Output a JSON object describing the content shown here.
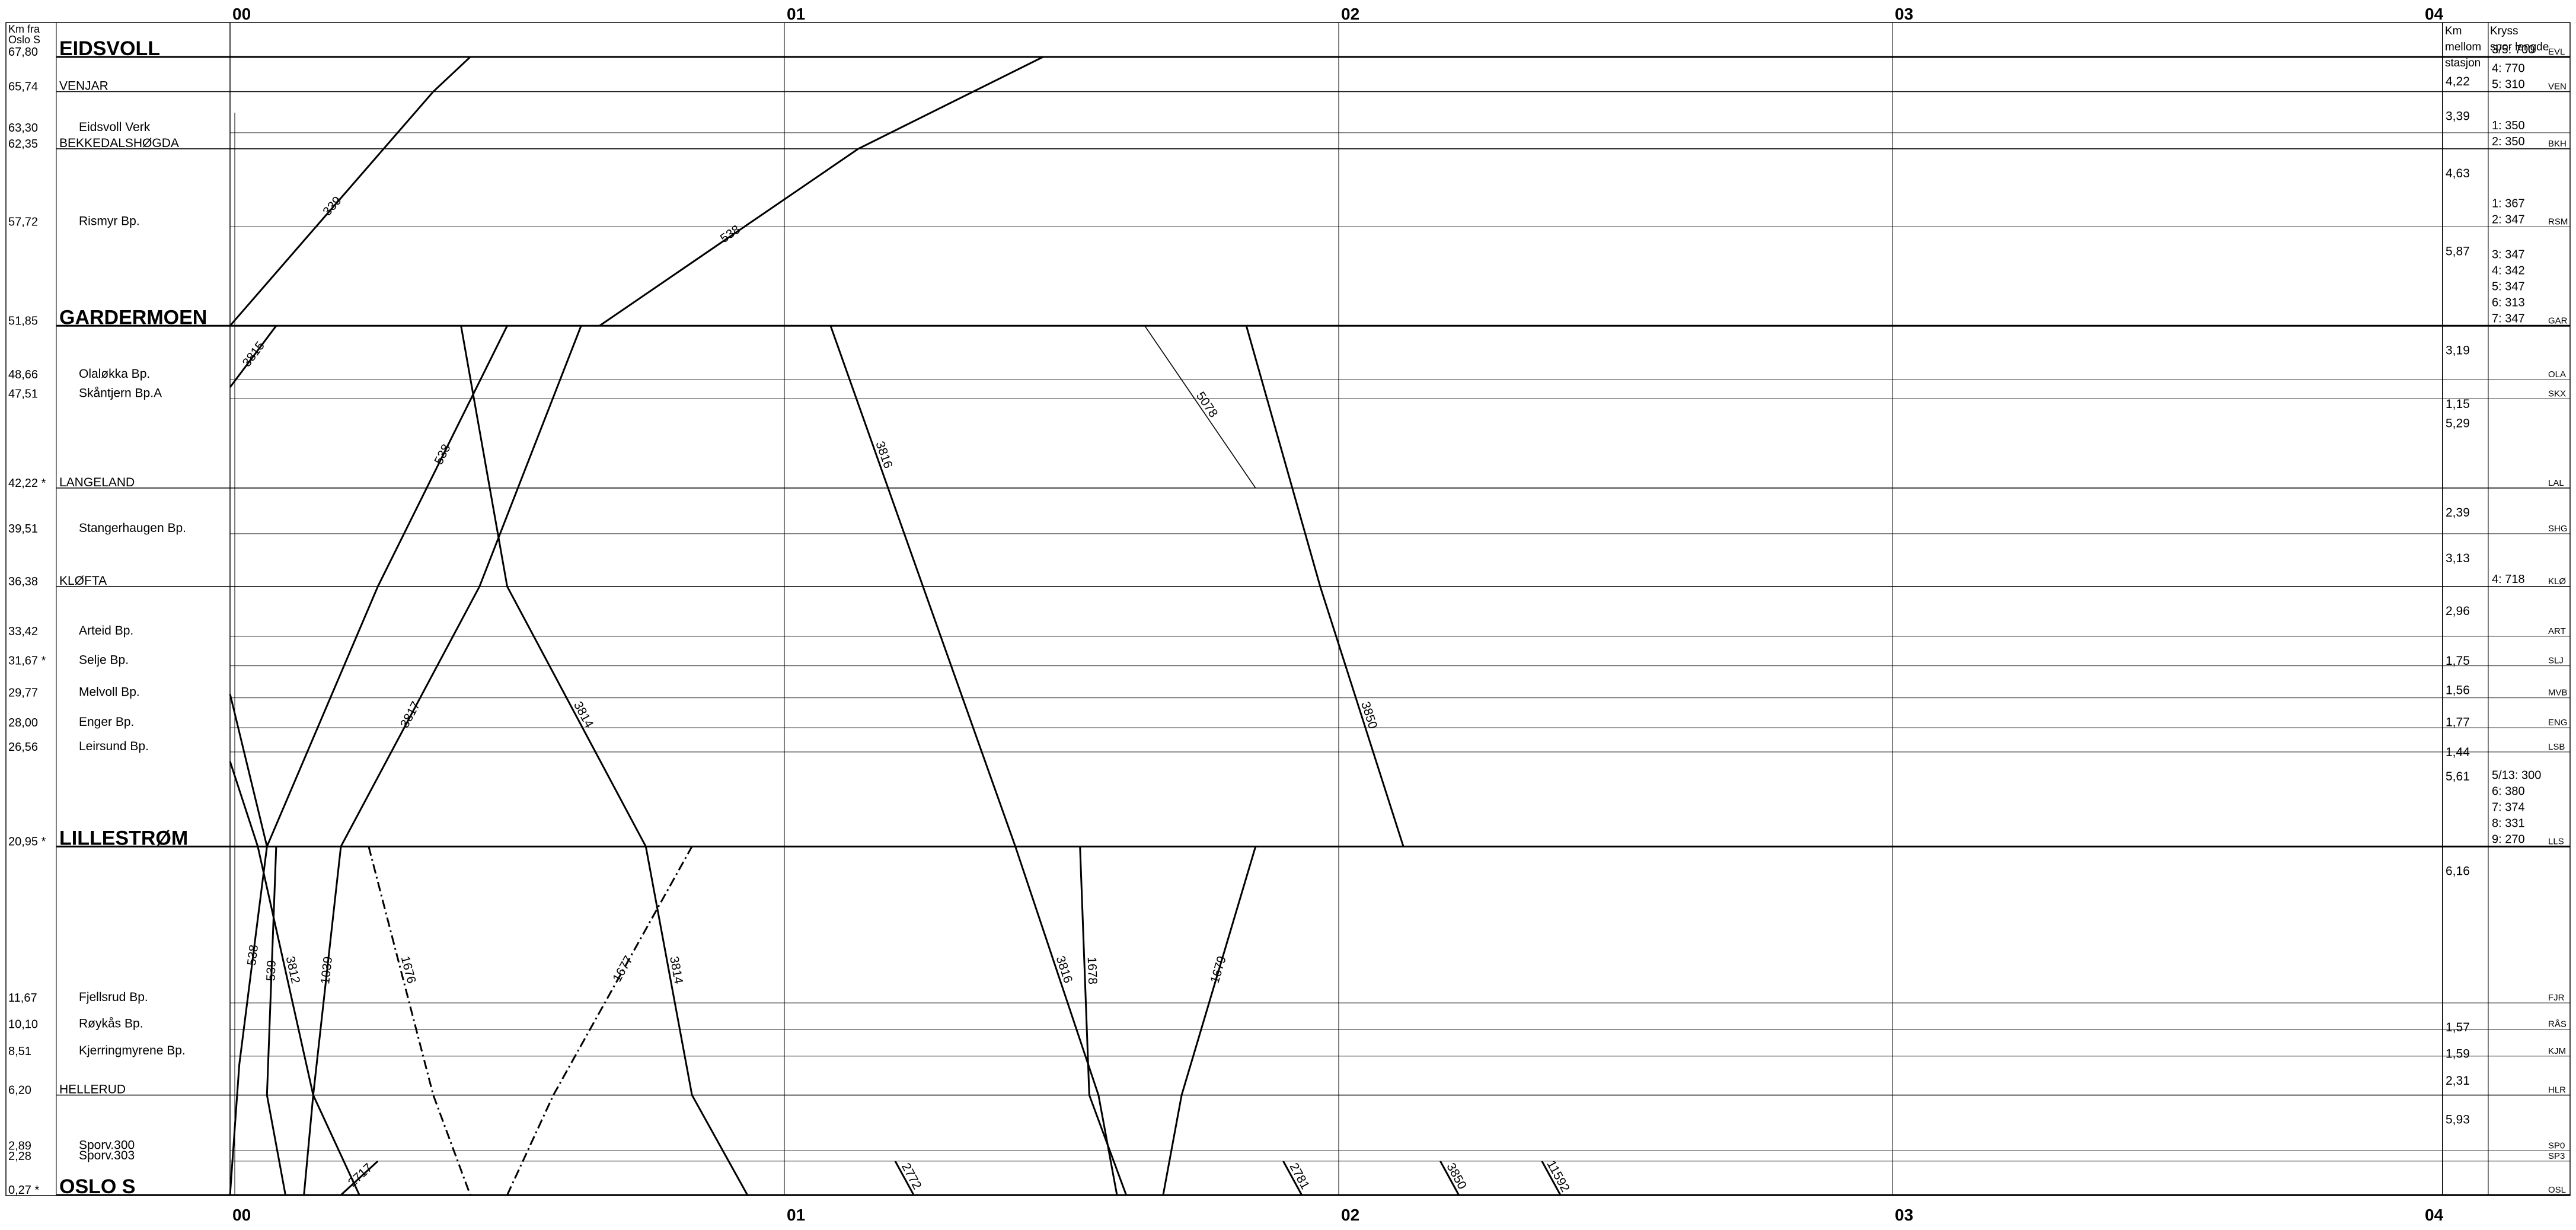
{
  "header": {
    "km_from_label": [
      "Km fra",
      "Oslo S"
    ],
    "km_between_label": [
      "Km",
      "mellom",
      "stasjon"
    ],
    "crossing_label": [
      "Kryss",
      "spor lengde"
    ]
  },
  "time_axis": {
    "labels": [
      "00",
      "01",
      "02",
      "03",
      "04"
    ]
  },
  "stations": [
    {
      "km": "67,80",
      "name": "EIDSVOLL",
      "style": "major",
      "code": "EVL",
      "tracks": [
        "3/5: 700"
      ]
    },
    {
      "km": "65,74",
      "name": "VENJAR",
      "style": "station",
      "code": "VEN",
      "tracks": [
        "4: 770",
        "5: 310"
      ]
    },
    {
      "km": "63,30",
      "name": "Eidsvoll Verk",
      "style": "stop",
      "code": "",
      "tracks": []
    },
    {
      "km": "62,35",
      "name": "BEKKEDALSHØGDA",
      "style": "station",
      "code": "BKH",
      "tracks": [
        "1: 350",
        "2: 350"
      ]
    },
    {
      "km": "57,72",
      "name": "Rismyr Bp.",
      "style": "stop",
      "code": "RSM",
      "tracks": [
        "1: 367",
        "2: 347"
      ]
    },
    {
      "km": "51,85",
      "name": "GARDERMOEN",
      "style": "major",
      "code": "GAR",
      "tracks": [
        "3: 347",
        "4: 342",
        "5: 347",
        "6: 313",
        "7: 347"
      ]
    },
    {
      "km": "48,66",
      "name": "Olaløkka Bp.",
      "style": "stop",
      "code": "OLA",
      "tracks": []
    },
    {
      "km": "47,51",
      "name": "Skåntjern Bp.A",
      "style": "stop",
      "code": "SKX",
      "tracks": []
    },
    {
      "km": "42,22",
      "name": "LANGELAND",
      "style": "station",
      "code": "LAL",
      "tracks": [],
      "marker": "*"
    },
    {
      "km": "39,51",
      "name": "Stangerhaugen Bp.",
      "style": "stop",
      "code": "SHG",
      "tracks": []
    },
    {
      "km": "36,38",
      "name": "KLØFTA",
      "style": "station",
      "code": "KLØ",
      "tracks": [
        "4: 718"
      ]
    },
    {
      "km": "33,42",
      "name": "Arteid Bp.",
      "style": "stop",
      "code": "ART",
      "tracks": []
    },
    {
      "km": "31,67",
      "name": "Selje Bp.",
      "style": "stop",
      "code": "SLJ",
      "tracks": [],
      "marker": "*"
    },
    {
      "km": "29,77",
      "name": "Melvoll Bp.",
      "style": "stop",
      "code": "MVB",
      "tracks": []
    },
    {
      "km": "28,00",
      "name": "Enger Bp.",
      "style": "stop",
      "code": "ENG",
      "tracks": []
    },
    {
      "km": "26,56",
      "name": "Leirsund Bp.",
      "style": "stop",
      "code": "LSB",
      "tracks": []
    },
    {
      "km": "20,95",
      "name": "LILLESTRØM",
      "style": "major",
      "code": "LLS",
      "tracks": [
        "5/13: 300",
        "6: 380",
        "7: 374",
        "8: 331",
        "9: 270"
      ],
      "marker": "*"
    },
    {
      "km": "11,67",
      "name": "Fjellsrud Bp.",
      "style": "stop",
      "code": "FJR",
      "tracks": []
    },
    {
      "km": "10,10",
      "name": "Røykås Bp.",
      "style": "stop",
      "code": "RÅS",
      "tracks": []
    },
    {
      "km": "8,51",
      "name": "Kjerringmyrene Bp.",
      "style": "stop",
      "code": "KJM",
      "tracks": []
    },
    {
      "km": "6,20",
      "name": "HELLERUD",
      "style": "station",
      "code": "HLR",
      "tracks": []
    },
    {
      "km": "2,89",
      "name": "Sporv.300",
      "style": "stop",
      "code": "SP0",
      "tracks": []
    },
    {
      "km": "2,28",
      "name": "Sporv.303",
      "style": "stop",
      "code": "SP3",
      "tracks": []
    },
    {
      "km": "0,27",
      "name": "OSLO S",
      "style": "major",
      "code": "OSL",
      "tracks": [],
      "marker": "*"
    }
  ],
  "segment_km": [
    "4,22",
    "3,39",
    "4,63",
    "5,87",
    "3,19",
    "1,15",
    "5,29",
    "2,39",
    "3,13",
    "2,96",
    "1,75",
    "1,56",
    "1,77",
    "1,44",
    "5,61",
    "6,16",
    "1,57",
    "1,59",
    "2,31",
    "5,93"
  ],
  "trains": [
    {
      "number": "339",
      "style": "solid",
      "path": [
        [
          0,
          51.85
        ],
        [
          22,
          65.74
        ],
        [
          26,
          67.8
        ]
      ]
    },
    {
      "number": "538",
      "style": "solid",
      "path": [
        [
          40,
          51.85
        ],
        [
          68,
          62.35
        ],
        [
          88,
          67.8
        ]
      ]
    },
    {
      "number": "3815",
      "style": "solid",
      "path": [
        [
          0,
          48.2
        ],
        [
          5,
          51.85
        ]
      ]
    },
    {
      "number": "3817",
      "style": "solid",
      "path": [
        [
          12,
          20.95
        ],
        [
          27,
          36.38
        ],
        [
          38,
          51.85
        ]
      ]
    },
    {
      "number": "3814",
      "style": "solid",
      "path": [
        [
          25,
          51.85
        ],
        [
          30,
          36.38
        ],
        [
          45,
          20.95
        ]
      ]
    },
    {
      "number": "538",
      "style": "solid",
      "path": [
        [
          0,
          30.0
        ],
        [
          4,
          20.95
        ],
        [
          16,
          36.38
        ],
        [
          30,
          51.85
        ]
      ]
    },
    {
      "number": "3816",
      "style": "solid",
      "path": [
        [
          65,
          51.85
        ],
        [
          75,
          36.38
        ],
        [
          85,
          20.95
        ]
      ]
    },
    {
      "number": "5078",
      "style": "thin",
      "path": [
        [
          99,
          51.85
        ],
        [
          111,
          42.22
        ]
      ]
    },
    {
      "number": "3850",
      "style": "solid",
      "path": [
        [
          110,
          51.85
        ],
        [
          118,
          36.38
        ],
        [
          127,
          20.95
        ]
      ]
    },
    {
      "number": "3812",
      "style": "solid",
      "path": [
        [
          0,
          26.0
        ],
        [
          3,
          20.95
        ],
        [
          9,
          6.2
        ],
        [
          14,
          0.27
        ]
      ]
    },
    {
      "number": "538",
      "style": "solid",
      "path": [
        [
          4,
          20.95
        ],
        [
          1,
          8.0
        ],
        [
          0,
          0.27
        ]
      ]
    },
    {
      "number": "539",
      "style": "solid",
      "path": [
        [
          5,
          20.95
        ],
        [
          4,
          6.2
        ],
        [
          6,
          0.27
        ]
      ]
    },
    {
      "number": "1039",
      "style": "solid",
      "path": [
        [
          12,
          20.95
        ],
        [
          9,
          6.2
        ],
        [
          8,
          0.27
        ]
      ]
    },
    {
      "number": "1676",
      "style": "dashdot",
      "path": [
        [
          15,
          20.95
        ],
        [
          22,
          6.2
        ],
        [
          26,
          0.27
        ]
      ]
    },
    {
      "number": "1677",
      "style": "dashdot",
      "path": [
        [
          30,
          0.27
        ],
        [
          35,
          6.2
        ],
        [
          50,
          20.95
        ]
      ]
    },
    {
      "number": "3814",
      "style": "solid",
      "path": [
        [
          45,
          20.95
        ],
        [
          50,
          6.2
        ],
        [
          56,
          0.27
        ]
      ]
    },
    {
      "number": "3816",
      "style": "solid",
      "path": [
        [
          85,
          20.95
        ],
        [
          94,
          6.2
        ],
        [
          96,
          0.27
        ]
      ]
    },
    {
      "number": "1678",
      "style": "solid",
      "path": [
        [
          92,
          20.95
        ],
        [
          93,
          6.2
        ],
        [
          97,
          0.27
        ]
      ]
    },
    {
      "number": "1679",
      "style": "solid",
      "path": [
        [
          101,
          0.27
        ],
        [
          103,
          6.2
        ],
        [
          111,
          20.95
        ]
      ]
    },
    {
      "number": "2781",
      "style": "solid",
      "path": [
        [
          114,
          2.28
        ],
        [
          116,
          0.27
        ]
      ]
    },
    {
      "number": "3850",
      "style": "solid",
      "path": [
        [
          131,
          2.28
        ],
        [
          133,
          0.27
        ]
      ]
    },
    {
      "number": "11592",
      "style": "solid",
      "path": [
        [
          142,
          2.28
        ],
        [
          144,
          0.27
        ]
      ]
    },
    {
      "number": "2772",
      "style": "solid",
      "path": [
        [
          72,
          2.28
        ],
        [
          74,
          0.27
        ]
      ]
    },
    {
      "number": "2717",
      "style": "solid",
      "path": [
        [
          12,
          0.27
        ],
        [
          16,
          2.28
        ]
      ]
    }
  ]
}
